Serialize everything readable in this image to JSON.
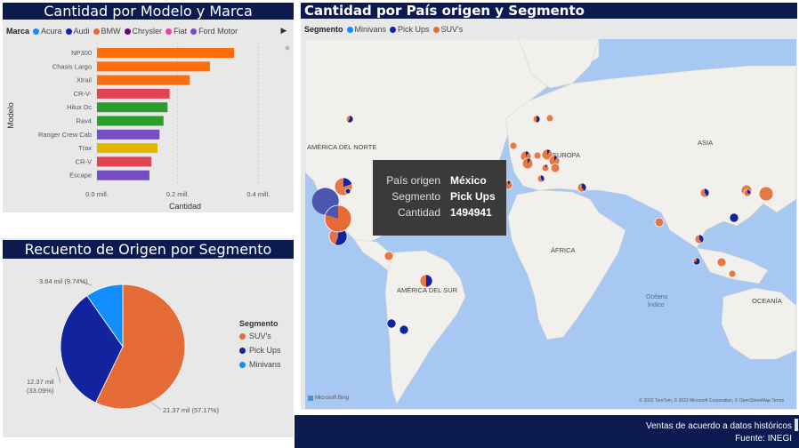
{
  "bar_chart": {
    "title": "Cantidad por Modelo y Marca",
    "legend_key": "Marca",
    "legend": [
      {
        "label": "Acura",
        "color": "#118dff"
      },
      {
        "label": "Audi",
        "color": "#12239e"
      },
      {
        "label": "BMW",
        "color": "#e66c37"
      },
      {
        "label": "Chrysler",
        "color": "#6b007b"
      },
      {
        "label": "Fiat",
        "color": "#e044a7"
      },
      {
        "label": "Ford Motor",
        "color": "#744ec2"
      }
    ],
    "more_icon": "chevron-right-icon",
    "ylabel": "Modelo",
    "xlabel": "Cantidad",
    "ticks": [
      "0.0 mill.",
      "0.2 mill.",
      "0.4 mill."
    ]
  },
  "pie_chart": {
    "title": "Recuento de Origen por Segmento",
    "legend_title": "Segmento",
    "legend": [
      {
        "label": "SUV's",
        "color": "#e66c37"
      },
      {
        "label": "Pick Ups",
        "color": "#12239e"
      },
      {
        "label": "Minivans",
        "color": "#118dff"
      }
    ]
  },
  "map": {
    "title": "Cantidad por País origen y Segmento",
    "legend_key": "Segmento",
    "legend": [
      {
        "label": "Minivans",
        "color": "#118dff"
      },
      {
        "label": "Pick Ups",
        "color": "#12239e"
      },
      {
        "label": "SUV's",
        "color": "#e66c37"
      }
    ],
    "labels": {
      "north_america": "AMÉRICA DEL NORTE",
      "europe": "EUROPA",
      "asia": "ASIA",
      "africa": "ÁFRICA",
      "south_america": "AMÉRICA DEL SUR",
      "oceania": "OCEANÍA",
      "indian_ocean_1": "Océano",
      "indian_ocean_2": "Índico"
    },
    "bing_logo": "Microsoft Bing",
    "attribution": "© 2022 TomTom, © 2022 Microsoft Corporation, © OpenStreetMap  Terms",
    "tooltip": {
      "rows": [
        {
          "key": "País origen",
          "value": "México"
        },
        {
          "key": "Segmento",
          "value": "Pick Ups"
        },
        {
          "key": "Cantidad",
          "value": "1494941"
        }
      ]
    }
  },
  "footer": {
    "line1": "Ventas de acuerdo a datos históricos",
    "line2": "Fuente: INEGI"
  },
  "chart_data": [
    {
      "type": "bar",
      "title": "Cantidad por Modelo y Marca",
      "xlabel": "Cantidad",
      "ylabel": "Modelo",
      "xlim": [
        0,
        0.45
      ],
      "unit": "mill.",
      "categories": [
        "NP300",
        "Chasis Largo",
        "Xtrail",
        "CR-V-",
        "Hilux Dc",
        "Rav4",
        "Ranger Crew Cab",
        "Trax",
        "CR-V",
        "Escape"
      ],
      "values": [
        0.34,
        0.28,
        0.23,
        0.18,
        0.175,
        0.165,
        0.155,
        0.15,
        0.135,
        0.13
      ],
      "colors": [
        "#ff6d0a",
        "#ff6d0a",
        "#ff6d0a",
        "#e04452",
        "#2a9d2a",
        "#2a9d2a",
        "#744ec2",
        "#e0b800",
        "#e04452",
        "#744ec2"
      ]
    },
    {
      "type": "pie",
      "title": "Recuento de Origen por Segmento",
      "labels": [
        "SUV's",
        "Pick Ups",
        "Minivans"
      ],
      "values": [
        21.37,
        12.37,
        3.64
      ],
      "data_labels": [
        "21.37 mil (57.17%)",
        "12.37 mil (33.09%)",
        "3.64 mil (9.74%)"
      ],
      "colors": [
        "#e66c37",
        "#12239e",
        "#118dff"
      ]
    }
  ]
}
